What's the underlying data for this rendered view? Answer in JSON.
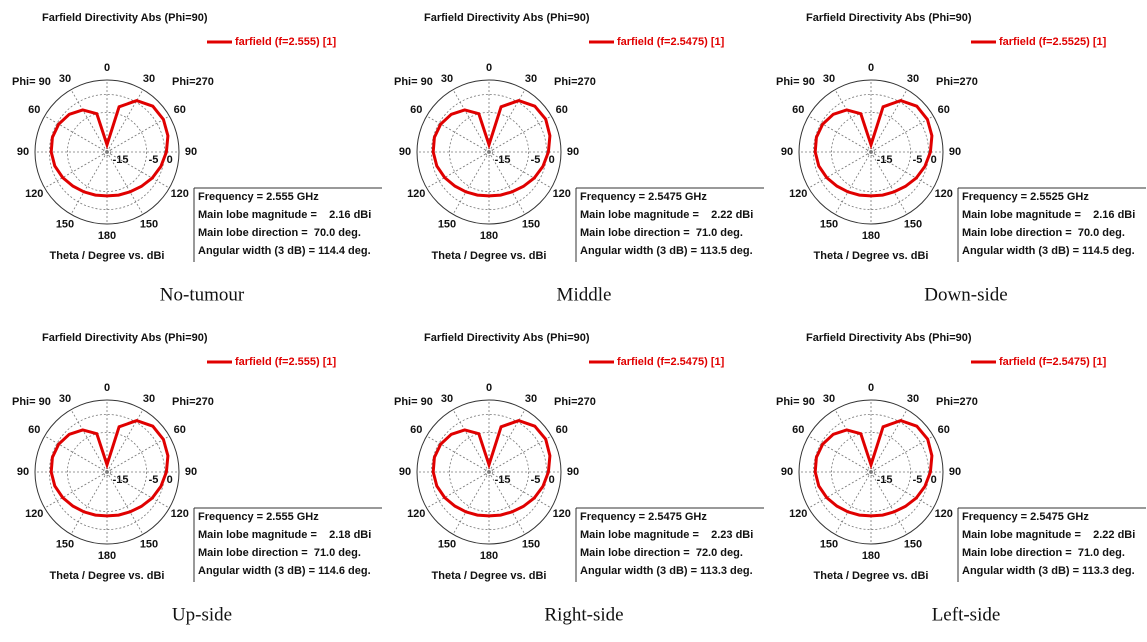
{
  "chart_data": [
    {
      "type": "polar",
      "title": "Farfield Directivity Abs (Phi=90)",
      "caption": "No-tumour",
      "axis_label": "Theta / Degree vs. dBi",
      "phi_labels": [
        "Phi= 90",
        "Phi=270"
      ],
      "series": [
        {
          "name": "farfield (f=2.555) [1]",
          "color": "#e00000",
          "theta": [
            0,
            15,
            30,
            45,
            60,
            75,
            90,
            105,
            120,
            135,
            150,
            165,
            180,
            195,
            210,
            225,
            240,
            255,
            270,
            285,
            300,
            315,
            330,
            345
          ],
          "values": [
            -14,
            -3,
            0.5,
            2,
            2.1,
            1.5,
            0.5,
            -0.5,
            -1.5,
            -2.5,
            -3.2,
            -3.6,
            -3.8,
            -3.6,
            -3.2,
            -2.6,
            -1.8,
            -1,
            -0.5,
            -0.3,
            -0.5,
            -1.2,
            -2.5,
            -5
          ]
        }
      ],
      "rlim": [
        -16,
        4
      ],
      "rticks": [
        -15,
        -5,
        0
      ],
      "thetaticks": [
        0,
        30,
        60,
        90,
        120,
        150,
        180,
        {
          "value": 210,
          "label": "150"
        },
        {
          "value": 240,
          "label": "120"
        },
        {
          "value": 270,
          "label": "90"
        },
        {
          "value": 300,
          "label": "60"
        },
        {
          "value": 330,
          "label": "30"
        }
      ],
      "info": [
        "Frequency = 2.555 GHz",
        "Main lobe magnitude =    2.16 dBi",
        "Main lobe direction =  70.0 deg.",
        "Angular width (3 dB) = 114.4 deg."
      ]
    },
    {
      "type": "polar",
      "title": "Farfield Directivity Abs (Phi=90)",
      "caption": "Middle",
      "axis_label": "Theta / Degree vs. dBi",
      "phi_labels": [
        "Phi= 90",
        "Phi=270"
      ],
      "series": [
        {
          "name": "farfield (f=2.5475) [1]",
          "color": "#e00000",
          "theta": [
            0,
            15,
            30,
            45,
            60,
            75,
            90,
            105,
            120,
            135,
            150,
            165,
            180,
            195,
            210,
            225,
            240,
            255,
            270,
            285,
            300,
            315,
            330,
            345
          ],
          "values": [
            -14,
            -3,
            0.5,
            2,
            2.2,
            1.5,
            0.5,
            -0.5,
            -1.5,
            -2.5,
            -3.2,
            -3.6,
            -3.8,
            -3.6,
            -3.2,
            -2.6,
            -1.8,
            -1,
            -0.5,
            -0.3,
            -0.5,
            -1.2,
            -2.5,
            -5
          ]
        }
      ],
      "rlim": [
        -16,
        4
      ],
      "rticks": [
        -15,
        -5,
        0
      ],
      "thetaticks": [
        0,
        30,
        60,
        90,
        120,
        150,
        180,
        {
          "value": 210,
          "label": "150"
        },
        {
          "value": 240,
          "label": "120"
        },
        {
          "value": 270,
          "label": "90"
        },
        {
          "value": 300,
          "label": "60"
        },
        {
          "value": 330,
          "label": "30"
        }
      ],
      "info": [
        "Frequency = 2.5475 GHz",
        "Main lobe magnitude =    2.22 dBi",
        "Main lobe direction =  71.0 deg.",
        "Angular width (3 dB) = 113.5 deg."
      ]
    },
    {
      "type": "polar",
      "title": "Farfield Directivity Abs (Phi=90)",
      "caption": "Down-side",
      "axis_label": "Theta / Degree vs. dBi",
      "phi_labels": [
        "Phi= 90",
        "Phi=270"
      ],
      "series": [
        {
          "name": "farfield (f=2.5525) [1]",
          "color": "#e00000",
          "theta": [
            0,
            15,
            30,
            45,
            60,
            75,
            90,
            105,
            120,
            135,
            150,
            165,
            180,
            195,
            210,
            225,
            240,
            255,
            270,
            285,
            300,
            315,
            330,
            345
          ],
          "values": [
            -14,
            -3,
            0.5,
            2,
            2.1,
            1.5,
            0.5,
            -0.5,
            -1.5,
            -2.5,
            -3.2,
            -3.6,
            -3.8,
            -3.6,
            -3.2,
            -2.6,
            -1.8,
            -1,
            -0.5,
            -0.3,
            -0.5,
            -1.2,
            -2.5,
            -5
          ]
        }
      ],
      "rlim": [
        -16,
        4
      ],
      "rticks": [
        -15,
        -5,
        0
      ],
      "thetaticks": [
        0,
        30,
        60,
        90,
        120,
        150,
        180,
        {
          "value": 210,
          "label": "150"
        },
        {
          "value": 240,
          "label": "120"
        },
        {
          "value": 270,
          "label": "90"
        },
        {
          "value": 300,
          "label": "60"
        },
        {
          "value": 330,
          "label": "30"
        }
      ],
      "info": [
        "Frequency = 2.5525 GHz",
        "Main lobe magnitude =    2.16 dBi",
        "Main lobe direction =  70.0 deg.",
        "Angular width (3 dB) = 114.5 deg."
      ]
    },
    {
      "type": "polar",
      "title": "Farfield Directivity Abs (Phi=90)",
      "caption": "Up-side",
      "axis_label": "Theta / Degree vs. dBi",
      "phi_labels": [
        "Phi= 90",
        "Phi=270"
      ],
      "series": [
        {
          "name": "farfield (f=2.555) [1]",
          "color": "#e00000",
          "theta": [
            0,
            15,
            30,
            45,
            60,
            75,
            90,
            105,
            120,
            135,
            150,
            165,
            180,
            195,
            210,
            225,
            240,
            255,
            270,
            285,
            300,
            315,
            330,
            345
          ],
          "values": [
            -14,
            -3,
            0.5,
            2,
            2.1,
            1.5,
            0.5,
            -0.5,
            -1.5,
            -2.5,
            -3.2,
            -3.6,
            -3.8,
            -3.6,
            -3.2,
            -2.6,
            -1.8,
            -1,
            -0.5,
            -0.3,
            -0.5,
            -1.2,
            -2.5,
            -5
          ]
        }
      ],
      "rlim": [
        -16,
        4
      ],
      "rticks": [
        -15,
        -5,
        0
      ],
      "thetaticks": [
        0,
        30,
        60,
        90,
        120,
        150,
        180,
        {
          "value": 210,
          "label": "150"
        },
        {
          "value": 240,
          "label": "120"
        },
        {
          "value": 270,
          "label": "90"
        },
        {
          "value": 300,
          "label": "60"
        },
        {
          "value": 330,
          "label": "30"
        }
      ],
      "info": [
        "Frequency = 2.555 GHz",
        "Main lobe magnitude =    2.18 dBi",
        "Main lobe direction =  71.0 deg.",
        "Angular width (3 dB) = 114.6 deg."
      ]
    },
    {
      "type": "polar",
      "title": "Farfield Directivity Abs (Phi=90)",
      "caption": "Right-side",
      "axis_label": "Theta / Degree vs. dBi",
      "phi_labels": [
        "Phi= 90",
        "Phi=270"
      ],
      "series": [
        {
          "name": "farfield (f=2.5475) [1]",
          "color": "#e00000",
          "theta": [
            0,
            15,
            30,
            45,
            60,
            75,
            90,
            105,
            120,
            135,
            150,
            165,
            180,
            195,
            210,
            225,
            240,
            255,
            270,
            285,
            300,
            315,
            330,
            345
          ],
          "values": [
            -14,
            -3,
            0.5,
            2,
            2.2,
            1.5,
            0.5,
            -0.5,
            -1.5,
            -2.5,
            -3.2,
            -3.6,
            -3.8,
            -3.6,
            -3.2,
            -2.6,
            -1.8,
            -1,
            -0.5,
            -0.3,
            -0.5,
            -1.2,
            -2.5,
            -5
          ]
        }
      ],
      "rlim": [
        -16,
        4
      ],
      "rticks": [
        -15,
        -5,
        0
      ],
      "thetaticks": [
        0,
        30,
        60,
        90,
        120,
        150,
        180,
        {
          "value": 210,
          "label": "150"
        },
        {
          "value": 240,
          "label": "120"
        },
        {
          "value": 270,
          "label": "90"
        },
        {
          "value": 300,
          "label": "60"
        },
        {
          "value": 330,
          "label": "30"
        }
      ],
      "info": [
        "Frequency = 2.5475 GHz",
        "Main lobe magnitude =    2.23 dBi",
        "Main lobe direction =  72.0 deg.",
        "Angular width (3 dB) = 113.3 deg."
      ]
    },
    {
      "type": "polar",
      "title": "Farfield Directivity Abs (Phi=90)",
      "caption": "Left-side",
      "axis_label": "Theta / Degree vs. dBi",
      "phi_labels": [
        "Phi= 90",
        "Phi=270"
      ],
      "series": [
        {
          "name": "farfield (f=2.5475) [1]",
          "color": "#e00000",
          "theta": [
            0,
            15,
            30,
            45,
            60,
            75,
            90,
            105,
            120,
            135,
            150,
            165,
            180,
            195,
            210,
            225,
            240,
            255,
            270,
            285,
            300,
            315,
            330,
            345
          ],
          "values": [
            -14,
            -3,
            0.5,
            2,
            2.2,
            1.5,
            0.5,
            -0.5,
            -1.5,
            -2.5,
            -3.2,
            -3.6,
            -3.8,
            -3.6,
            -3.2,
            -2.6,
            -1.8,
            -1,
            -0.5,
            -0.3,
            -0.5,
            -1.2,
            -2.5,
            -5
          ]
        }
      ],
      "rlim": [
        -16,
        4
      ],
      "rticks": [
        -15,
        -5,
        0
      ],
      "thetaticks": [
        0,
        30,
        60,
        90,
        120,
        150,
        180,
        {
          "value": 210,
          "label": "150"
        },
        {
          "value": 240,
          "label": "120"
        },
        {
          "value": 270,
          "label": "90"
        },
        {
          "value": 300,
          "label": "60"
        },
        {
          "value": 330,
          "label": "30"
        }
      ],
      "info": [
        "Frequency = 2.5475 GHz",
        "Main lobe magnitude =    2.22 dBi",
        "Main lobe direction =  71.0 deg.",
        "Angular width (3 dB) = 113.3 deg."
      ]
    }
  ]
}
